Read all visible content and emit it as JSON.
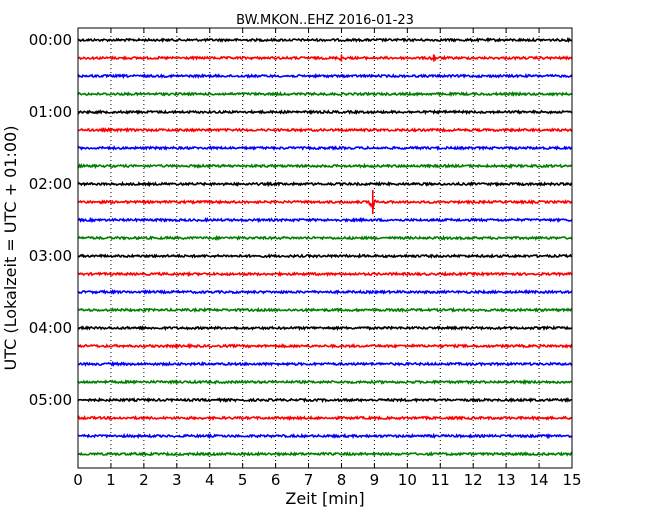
{
  "chart_data": {
    "type": "line",
    "title": "BW.MKON..EHZ 2016-01-23",
    "xlabel": "Zeit  [min]",
    "ylabel": "UTC (Lokalzeit = UTC + 01:00)",
    "xlim": [
      0,
      15
    ],
    "x_ticks": [
      "0",
      "1",
      "2",
      "3",
      "4",
      "5",
      "6",
      "7",
      "8",
      "9",
      "10",
      "11",
      "12",
      "13",
      "14",
      "15"
    ],
    "y_tick_labels": [
      "00:00",
      "01:00",
      "02:00",
      "03:00",
      "04:00",
      "05:00"
    ],
    "trace_start_minutes": [
      0,
      15,
      30,
      45,
      60,
      75,
      90,
      105,
      120,
      135,
      150,
      165,
      180,
      195,
      210,
      225,
      240,
      255,
      270,
      285,
      300,
      315,
      330,
      345
    ],
    "trace_colors": [
      "#000000",
      "#ff0000",
      "#0000ff",
      "#008000"
    ],
    "grid": "vertical-dotted",
    "events": [
      {
        "trace_start_minute": 15,
        "minute": 8.0,
        "amplitude": 1.5
      },
      {
        "trace_start_minute": 15,
        "minute": 10.8,
        "amplitude": 1.5
      },
      {
        "trace_start_minute": 135,
        "minute": 8.95,
        "amplitude": 5
      }
    ]
  }
}
